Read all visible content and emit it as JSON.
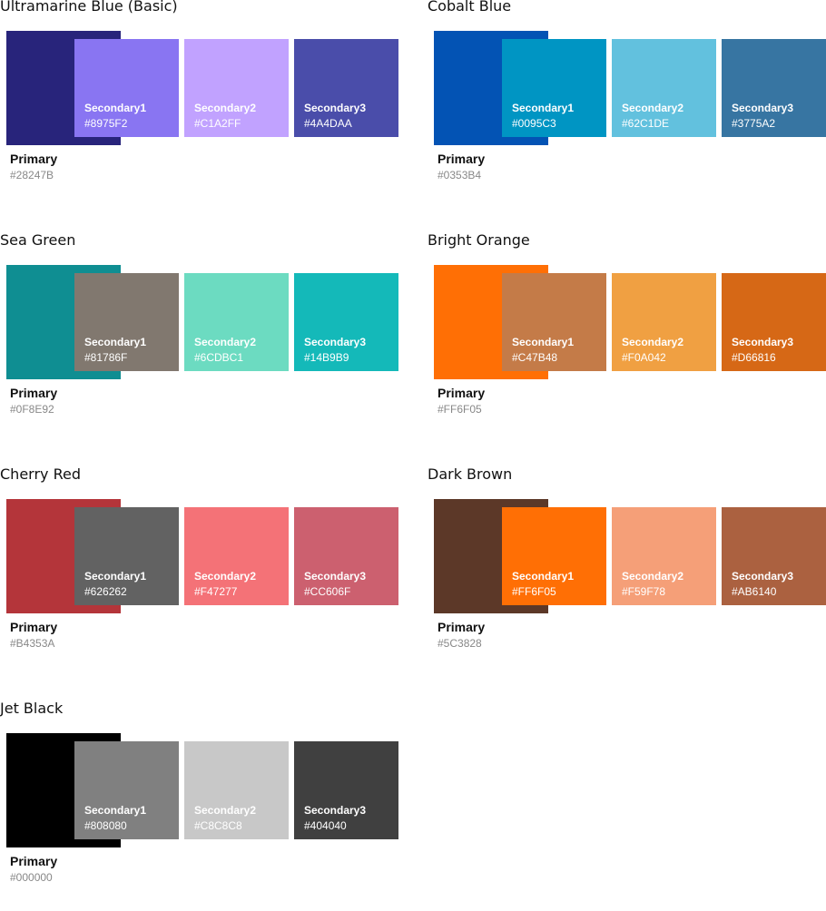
{
  "palettes": [
    {
      "title": "Ultramarine Blue (Basic)",
      "primary": {
        "label": "Primary",
        "hex": "#28247B"
      },
      "secondary": [
        {
          "label": "Secondary1",
          "hex": "#8975F2"
        },
        {
          "label": "Secondary2",
          "hex": "#C1A2FF"
        },
        {
          "label": "Secondary3",
          "hex": "#4A4DAA"
        }
      ]
    },
    {
      "title": "Cobalt Blue",
      "primary": {
        "label": "Primary",
        "hex": "#0353B4"
      },
      "secondary": [
        {
          "label": "Secondary1",
          "hex": "#0095C3"
        },
        {
          "label": "Secondary2",
          "hex": "#62C1DE"
        },
        {
          "label": "Secondary3",
          "hex": "#3775A2"
        }
      ]
    },
    {
      "title": "Sea Green",
      "primary": {
        "label": "Primary",
        "hex": "#0F8E92"
      },
      "secondary": [
        {
          "label": "Secondary1",
          "hex": "#81786F"
        },
        {
          "label": "Secondary2",
          "hex": "#6CDBC1"
        },
        {
          "label": "Secondary3",
          "hex": "#14B9B9"
        }
      ]
    },
    {
      "title": "Bright Orange",
      "primary": {
        "label": "Primary",
        "hex": "#FF6F05"
      },
      "secondary": [
        {
          "label": "Secondary1",
          "hex": "#C47B48"
        },
        {
          "label": "Secondary2",
          "hex": "#F0A042"
        },
        {
          "label": "Secondary3",
          "hex": "#D66816"
        }
      ]
    },
    {
      "title": "Cherry Red",
      "primary": {
        "label": "Primary",
        "hex": "#B4353A"
      },
      "secondary": [
        {
          "label": "Secondary1",
          "hex": "#626262"
        },
        {
          "label": "Secondary2",
          "hex": "#F47277"
        },
        {
          "label": "Secondary3",
          "hex": "#CC606F"
        }
      ]
    },
    {
      "title": "Dark Brown",
      "primary": {
        "label": "Primary",
        "hex": "#5C3828"
      },
      "secondary": [
        {
          "label": "Secondary1",
          "hex": "#FF6F05"
        },
        {
          "label": "Secondary2",
          "hex": "#F59F78"
        },
        {
          "label": "Secondary3",
          "hex": "#AB6140"
        }
      ]
    },
    {
      "title": "Jet Black",
      "primary": {
        "label": "Primary",
        "hex": "#000000"
      },
      "secondary": [
        {
          "label": "Secondary1",
          "hex": "#808080"
        },
        {
          "label": "Secondary2",
          "hex": "#C8C8C8"
        },
        {
          "label": "Secondary3",
          "hex": "#404040"
        }
      ]
    }
  ]
}
